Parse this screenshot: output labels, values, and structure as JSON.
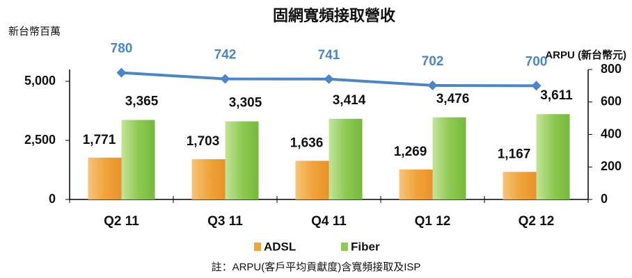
{
  "chart_data": {
    "type": "bar",
    "title": "固網寬頻接取營收",
    "ylabel": "新台幣百萬",
    "y2label": "ARPU (新台幣元)",
    "note": "註：ARPU(客戶平均貢獻度)含寬頻接取及ISP",
    "categories": [
      "Q2 11",
      "Q3 11",
      "Q4 11",
      "Q1 12",
      "Q2 12"
    ],
    "series": [
      {
        "name": "ADSL",
        "type": "bar",
        "color": "#f0a53a",
        "values": [
          1771,
          1703,
          1636,
          1269,
          1167
        ],
        "value_labels": [
          "1,771",
          "1,703",
          "1,636",
          "1,269",
          "1,167"
        ]
      },
      {
        "name": "Fiber",
        "type": "bar",
        "color": "#8fca52",
        "values": [
          3365,
          3305,
          3414,
          3476,
          3611
        ],
        "value_labels": [
          "3,365",
          "3,305",
          "3,414",
          "3,476",
          "3,611"
        ]
      },
      {
        "name": "ARPU",
        "type": "line",
        "axis": "y2",
        "color": "#4a86c8",
        "values": [
          780,
          742,
          741,
          702,
          700
        ]
      }
    ],
    "ylim": [
      0,
      5500
    ],
    "yticks": [
      0,
      {
        "value": 2500,
        "label": "2,500"
      },
      {
        "value": 5000,
        "label": "5,000"
      }
    ],
    "y2lim": [
      0,
      800
    ],
    "y2ticks": [
      0,
      200,
      400,
      600,
      800
    ],
    "legend": "bottom"
  }
}
